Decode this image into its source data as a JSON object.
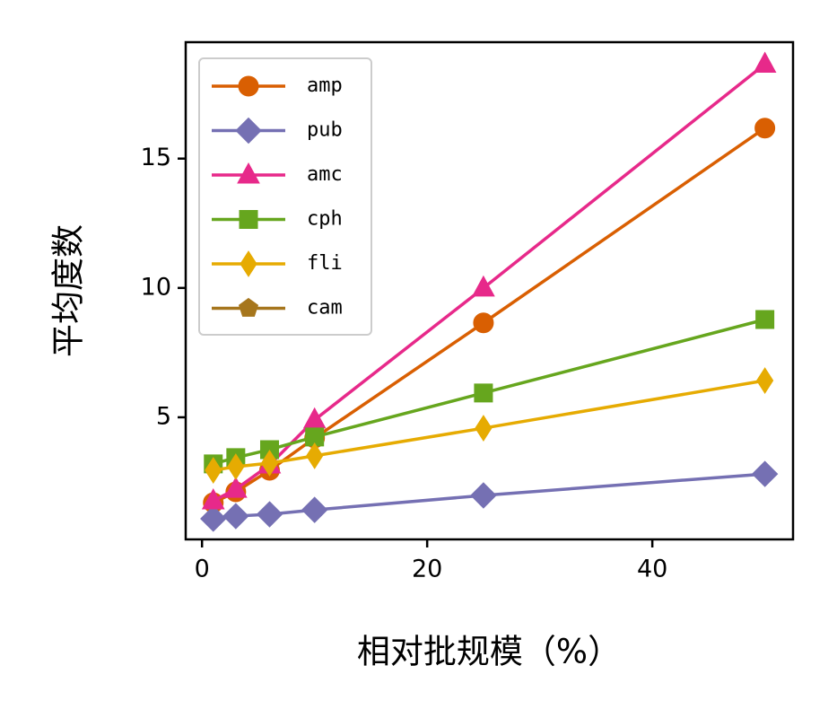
{
  "chart_data": {
    "type": "line",
    "x_label": "相对批规模（%）",
    "y_label": "平均度数",
    "x": [
      1,
      3,
      6,
      10,
      25,
      50
    ],
    "series": [
      {
        "name": "amp",
        "color": "#d95f02",
        "marker": "circle",
        "values": [
          1.7,
          2.12,
          2.95,
          4.2,
          8.65,
          16.18
        ]
      },
      {
        "name": "pub",
        "color": "#7570b3",
        "marker": "diamond",
        "values": [
          1.08,
          1.18,
          1.25,
          1.42,
          1.98,
          2.81
        ]
      },
      {
        "name": "amc",
        "color": "#e7298a",
        "marker": "triangle",
        "values": [
          1.77,
          2.22,
          3.16,
          4.9,
          10.0,
          18.65
        ]
      },
      {
        "name": "cph",
        "color": "#66a61e",
        "marker": "square",
        "values": [
          3.2,
          3.44,
          3.75,
          4.24,
          5.94,
          8.78
        ]
      },
      {
        "name": "fli",
        "color": "#e6ab02",
        "marker": "thin_diamond",
        "values": [
          2.95,
          3.09,
          3.23,
          3.51,
          4.58,
          6.42
        ]
      },
      {
        "name": "cam",
        "color": "#a6761d",
        "marker": "pentagon",
        "values": [
          null,
          null,
          null,
          null,
          null,
          null
        ]
      }
    ],
    "xlim": [
      -1.45,
      52.5
    ],
    "ylim": [
      0.28,
      19.5
    ],
    "xticks": [
      0,
      20,
      40
    ],
    "yticks": [
      5,
      10,
      15
    ],
    "grid": false,
    "legend": "upper left"
  }
}
